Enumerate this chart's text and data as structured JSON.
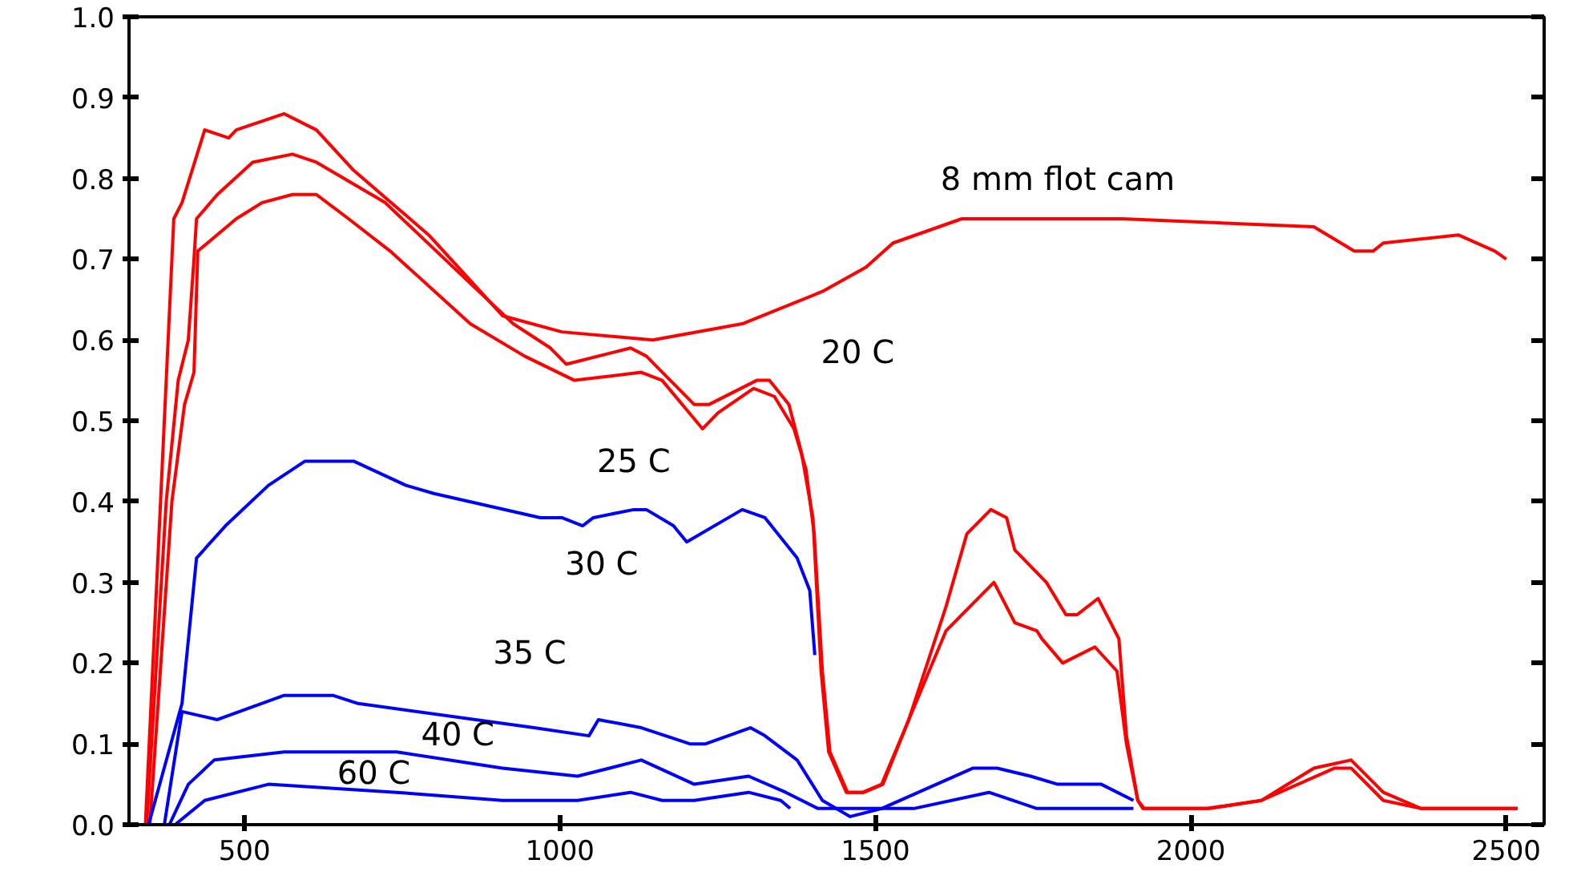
{
  "chart_data": {
    "type": "line",
    "xlim": [
      317,
      2560
    ],
    "ylim": [
      0,
      1.0
    ],
    "xticks": [
      500,
      1000,
      1500,
      2000,
      2500
    ],
    "yticks": [
      {
        "value": 0,
        "label": "0.0"
      },
      {
        "value": 0.1,
        "label": "0.1"
      },
      {
        "value": 0.2,
        "label": "0.2"
      },
      {
        "value": 0.3,
        "label": "0.3"
      },
      {
        "value": 0.4,
        "label": "0.4"
      },
      {
        "value": 0.5,
        "label": "0.5"
      },
      {
        "value": 0.6,
        "label": "0.6"
      },
      {
        "value": 0.7,
        "label": "0.7"
      },
      {
        "value": 0.8,
        "label": "0.8"
      },
      {
        "value": 0.9,
        "label": "0.9"
      },
      {
        "value": 1.0,
        "label": "1.0"
      }
    ],
    "grid": false,
    "line_style": "solid",
    "series": [
      {
        "color": "#ff0000",
        "x": [
          343,
          376,
          388,
          401,
          437,
          475,
          487,
          563,
          614,
          673,
          792,
          909,
          1003,
          1147,
          1289,
          1416,
          1485,
          1528,
          1637,
          1891,
          2195,
          2259,
          2289,
          2305,
          2424,
          2482,
          2500
        ],
        "values": [
          0,
          0.55,
          0.75,
          0.77,
          0.86,
          0.85,
          0.86,
          0.88,
          0.86,
          0.81,
          0.73,
          0.63,
          0.61,
          0.6,
          0.62,
          0.66,
          0.69,
          0.72,
          0.75,
          0.75,
          0.74,
          0.71,
          0.71,
          0.72,
          0.73,
          0.71,
          0.7
        ]
      },
      {
        "color": "#ff0000",
        "x": [
          345,
          376,
          395,
          411,
          420,
          424,
          457,
          513,
          576,
          614,
          723,
          858,
          926,
          985,
          1010,
          1112,
          1137,
          1213,
          1236,
          1312,
          1332,
          1363,
          1383,
          1401,
          1414,
          1426,
          1454,
          1480,
          1510,
          1553,
          1612,
          1645,
          1683,
          1708,
          1721,
          1771,
          1802,
          1820,
          1853,
          1873,
          1886,
          1898,
          1916,
          1924,
          2025,
          2112,
          2195,
          2254,
          2305,
          2365,
          2518
        ],
        "values": [
          0,
          0.4,
          0.55,
          0.6,
          0.7,
          0.75,
          0.78,
          0.82,
          0.83,
          0.82,
          0.77,
          0.67,
          0.62,
          0.59,
          0.57,
          0.59,
          0.58,
          0.52,
          0.52,
          0.55,
          0.55,
          0.52,
          0.46,
          0.38,
          0.19,
          0.09,
          0.04,
          0.04,
          0.05,
          0.13,
          0.27,
          0.36,
          0.39,
          0.38,
          0.34,
          0.3,
          0.26,
          0.26,
          0.28,
          0.25,
          0.23,
          0.11,
          0.03,
          0.02,
          0.02,
          0.03,
          0.07,
          0.08,
          0.04,
          0.02,
          0.02
        ]
      },
      {
        "color": "#ff0000",
        "x": [
          350,
          385,
          405,
          420,
          426,
          487,
          528,
          576,
          614,
          665,
          731,
          858,
          944,
          1023,
          1129,
          1162,
          1226,
          1251,
          1307,
          1340,
          1371,
          1390,
          1403,
          1416,
          1428,
          1456,
          1482,
          1512,
          1553,
          1612,
          1688,
          1721,
          1756,
          1764,
          1797,
          1848,
          1883,
          1898,
          1916,
          1926,
          2030,
          2112,
          2228,
          2254,
          2305,
          2365,
          2518
        ],
        "values": [
          0,
          0.4,
          0.52,
          0.56,
          0.71,
          0.75,
          0.77,
          0.78,
          0.78,
          0.75,
          0.71,
          0.62,
          0.58,
          0.55,
          0.56,
          0.55,
          0.49,
          0.51,
          0.54,
          0.53,
          0.49,
          0.44,
          0.36,
          0.19,
          0.09,
          0.04,
          0.04,
          0.05,
          0.13,
          0.24,
          0.3,
          0.25,
          0.24,
          0.23,
          0.2,
          0.22,
          0.19,
          0.1,
          0.03,
          0.02,
          0.02,
          0.03,
          0.07,
          0.07,
          0.03,
          0.02,
          0.02
        ]
      },
      {
        "color": "#0000ff",
        "x": [
          348,
          401,
          424,
          470,
          538,
          596,
          673,
          756,
          800,
          969,
          1003,
          1036,
          1053,
          1117,
          1137,
          1180,
          1201,
          1289,
          1325,
          1376,
          1396,
          1404
        ],
        "values": [
          0.0,
          0.15,
          0.33,
          0.37,
          0.42,
          0.45,
          0.45,
          0.42,
          0.41,
          0.38,
          0.38,
          0.37,
          0.38,
          0.39,
          0.39,
          0.37,
          0.35,
          0.39,
          0.38,
          0.33,
          0.29,
          0.21
        ]
      },
      {
        "color": "#0000ff",
        "x": [
          373,
          401,
          457,
          563,
          640,
          680,
          959,
          1046,
          1061,
          1129,
          1206,
          1231,
          1302,
          1325,
          1376,
          1416,
          1460,
          1510,
          1655,
          1693,
          1746,
          1789,
          1858,
          1909
        ],
        "values": [
          0.0,
          0.14,
          0.13,
          0.16,
          0.16,
          0.15,
          0.12,
          0.11,
          0.13,
          0.12,
          0.1,
          0.1,
          0.12,
          0.11,
          0.08,
          0.03,
          0.01,
          0.02,
          0.07,
          0.07,
          0.06,
          0.05,
          0.05,
          0.03
        ]
      },
      {
        "color": "#0000ff",
        "x": [
          381,
          411,
          452,
          563,
          741,
          909,
          1028,
          1129,
          1213,
          1299,
          1358,
          1409,
          1561,
          1680,
          1756,
          1909
        ],
        "values": [
          0.0,
          0.05,
          0.08,
          0.09,
          0.09,
          0.07,
          0.06,
          0.08,
          0.05,
          0.06,
          0.04,
          0.02,
          0.02,
          0.04,
          0.02,
          0.02
        ]
      },
      {
        "color": "#0000ff",
        "x": [
          390,
          437,
          538,
          741,
          909,
          1028,
          1112,
          1162,
          1213,
          1299,
          1350,
          1365
        ],
        "values": [
          0.0,
          0.03,
          0.05,
          0.04,
          0.03,
          0.03,
          0.04,
          0.03,
          0.03,
          0.04,
          0.03,
          0.02
        ]
      }
    ],
    "annotations": [
      "8 mm flot cam",
      "20 C",
      "25 C",
      "30 C",
      "35 C",
      "40 C",
      "60 C"
    ]
  }
}
